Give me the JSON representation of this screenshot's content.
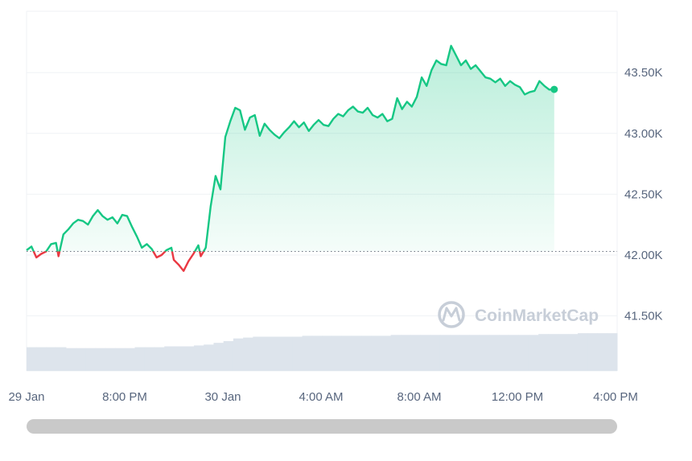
{
  "chart_data": {
    "type": "line",
    "watermark": "CoinMarketCap",
    "y_ticks": [
      {
        "value": 43500,
        "label": "43.50K"
      },
      {
        "value": 43000,
        "label": "43.00K"
      },
      {
        "value": 42500,
        "label": "42.50K"
      },
      {
        "value": 42000,
        "label": "42.00K"
      },
      {
        "value": 41500,
        "label": "41.50K"
      }
    ],
    "x_ticks": [
      {
        "t": 0,
        "label": "29 Jan"
      },
      {
        "t": 4,
        "label": "8:00 PM"
      },
      {
        "t": 8,
        "label": "30 Jan"
      },
      {
        "t": 12,
        "label": "4:00 AM"
      },
      {
        "t": 16,
        "label": "8:00 AM"
      },
      {
        "t": 20,
        "label": "12:00 PM"
      },
      {
        "t": 24,
        "label": "4:00 PM"
      }
    ],
    "x_unit": "hours since 29 Jan 4:00 PM",
    "x_range": [
      0,
      24.1
    ],
    "y_range": [
      41030,
      44000
    ],
    "baseline": 42030,
    "grid": true,
    "series": [
      {
        "points": [
          [
            0.0,
            42040
          ],
          [
            0.2,
            42070
          ],
          [
            0.4,
            41980
          ],
          [
            0.6,
            42010
          ],
          [
            0.8,
            42030
          ],
          [
            1.0,
            42090
          ],
          [
            1.2,
            42100
          ],
          [
            1.3,
            41990
          ],
          [
            1.5,
            42170
          ],
          [
            1.7,
            42210
          ],
          [
            1.9,
            42260
          ],
          [
            2.1,
            42290
          ],
          [
            2.3,
            42280
          ],
          [
            2.5,
            42250
          ],
          [
            2.7,
            42320
          ],
          [
            2.9,
            42370
          ],
          [
            3.1,
            42320
          ],
          [
            3.3,
            42290
          ],
          [
            3.5,
            42310
          ],
          [
            3.7,
            42260
          ],
          [
            3.9,
            42330
          ],
          [
            4.1,
            42320
          ],
          [
            4.3,
            42230
          ],
          [
            4.5,
            42150
          ],
          [
            4.7,
            42060
          ],
          [
            4.9,
            42090
          ],
          [
            5.1,
            42050
          ],
          [
            5.3,
            41980
          ],
          [
            5.5,
            42000
          ],
          [
            5.7,
            42040
          ],
          [
            5.9,
            42060
          ],
          [
            6.0,
            41960
          ],
          [
            6.2,
            41920
          ],
          [
            6.4,
            41870
          ],
          [
            6.6,
            41950
          ],
          [
            6.8,
            42010
          ],
          [
            7.0,
            42080
          ],
          [
            7.1,
            41990
          ],
          [
            7.3,
            42060
          ],
          [
            7.5,
            42400
          ],
          [
            7.7,
            42650
          ],
          [
            7.9,
            42540
          ],
          [
            8.1,
            42970
          ],
          [
            8.3,
            43100
          ],
          [
            8.5,
            43210
          ],
          [
            8.7,
            43190
          ],
          [
            8.9,
            43030
          ],
          [
            9.1,
            43130
          ],
          [
            9.3,
            43150
          ],
          [
            9.5,
            42980
          ],
          [
            9.7,
            43080
          ],
          [
            9.9,
            43030
          ],
          [
            10.1,
            42990
          ],
          [
            10.3,
            42960
          ],
          [
            10.5,
            43010
          ],
          [
            10.7,
            43050
          ],
          [
            10.9,
            43100
          ],
          [
            11.1,
            43050
          ],
          [
            11.3,
            43090
          ],
          [
            11.5,
            43020
          ],
          [
            11.7,
            43070
          ],
          [
            11.9,
            43110
          ],
          [
            12.1,
            43070
          ],
          [
            12.3,
            43060
          ],
          [
            12.5,
            43120
          ],
          [
            12.7,
            43160
          ],
          [
            12.9,
            43140
          ],
          [
            13.1,
            43190
          ],
          [
            13.3,
            43220
          ],
          [
            13.5,
            43180
          ],
          [
            13.7,
            43170
          ],
          [
            13.9,
            43210
          ],
          [
            14.1,
            43150
          ],
          [
            14.3,
            43130
          ],
          [
            14.5,
            43160
          ],
          [
            14.7,
            43100
          ],
          [
            14.9,
            43120
          ],
          [
            15.1,
            43290
          ],
          [
            15.3,
            43200
          ],
          [
            15.5,
            43260
          ],
          [
            15.7,
            43220
          ],
          [
            15.9,
            43300
          ],
          [
            16.1,
            43460
          ],
          [
            16.3,
            43390
          ],
          [
            16.5,
            43520
          ],
          [
            16.7,
            43600
          ],
          [
            16.9,
            43570
          ],
          [
            17.1,
            43560
          ],
          [
            17.3,
            43720
          ],
          [
            17.5,
            43640
          ],
          [
            17.7,
            43560
          ],
          [
            17.9,
            43600
          ],
          [
            18.1,
            43530
          ],
          [
            18.3,
            43560
          ],
          [
            18.5,
            43510
          ],
          [
            18.7,
            43460
          ],
          [
            18.9,
            43450
          ],
          [
            19.1,
            43420
          ],
          [
            19.3,
            43450
          ],
          [
            19.5,
            43390
          ],
          [
            19.7,
            43430
          ],
          [
            19.9,
            43400
          ],
          [
            20.1,
            43380
          ],
          [
            20.3,
            43320
          ],
          [
            20.5,
            43340
          ],
          [
            20.7,
            43350
          ],
          [
            20.9,
            43430
          ],
          [
            21.1,
            43390
          ],
          [
            21.3,
            43360
          ],
          [
            21.5,
            43362
          ]
        ]
      }
    ],
    "volume_levels": [
      0.27,
      0.27,
      0.27,
      0.27,
      0.26,
      0.26,
      0.26,
      0.26,
      0.26,
      0.26,
      0.26,
      0.27,
      0.27,
      0.27,
      0.28,
      0.28,
      0.28,
      0.29,
      0.3,
      0.32,
      0.34,
      0.37,
      0.38,
      0.39,
      0.39,
      0.39,
      0.39,
      0.39,
      0.4,
      0.4,
      0.4,
      0.4,
      0.4,
      0.4,
      0.4,
      0.4,
      0.4,
      0.41,
      0.41,
      0.41,
      0.41,
      0.41,
      0.41,
      0.41,
      0.41,
      0.41,
      0.41,
      0.41,
      0.41,
      0.41,
      0.41,
      0.41,
      0.42,
      0.42,
      0.42,
      0.42,
      0.43,
      0.43,
      0.43,
      0.43
    ],
    "colors": {
      "up": "#16c784",
      "down": "#ea3943",
      "grid": "#eff2f5",
      "baseline": "#6b7280",
      "volume": "#dde4ec",
      "axis_text": "#58667e",
      "watermark": "#c7ced8"
    }
  },
  "scrollbar": {
    "label": ""
  }
}
